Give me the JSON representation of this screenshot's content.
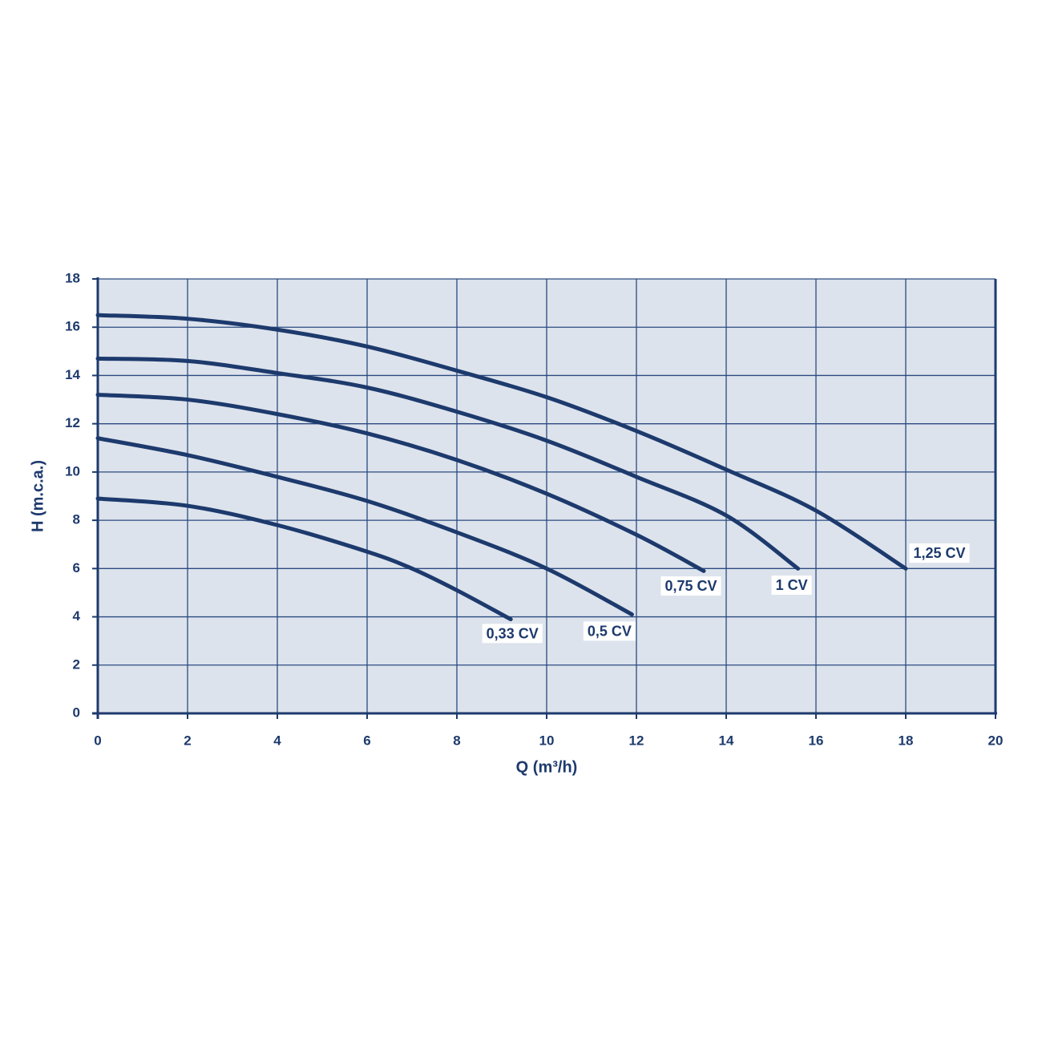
{
  "chart_data": {
    "type": "line",
    "x_label": "Q (m³/h)",
    "y_label": "H (m.c.a.)",
    "xlim": [
      0,
      20
    ],
    "ylim": [
      0,
      18
    ],
    "xticks": [
      0,
      2,
      4,
      6,
      8,
      10,
      12,
      14,
      16,
      18,
      20
    ],
    "yticks": [
      0,
      2,
      4,
      6,
      8,
      10,
      12,
      14,
      16,
      18
    ],
    "grid": true,
    "background": "#dde3ec",
    "series": [
      {
        "name": "1,25 CV",
        "color": "#1d3a6d",
        "x": [
          0,
          2,
          4,
          6,
          8,
          10,
          12,
          14,
          16,
          18
        ],
        "values": [
          16.5,
          16.35,
          15.9,
          15.2,
          14.2,
          13.1,
          11.7,
          10.1,
          8.4,
          6.0
        ]
      },
      {
        "name": "1 CV",
        "color": "#1d3a6d",
        "x": [
          0,
          2,
          4,
          6,
          8,
          10,
          12,
          14,
          15.6
        ],
        "values": [
          14.7,
          14.6,
          14.1,
          13.5,
          12.5,
          11.3,
          9.8,
          8.2,
          6.0
        ]
      },
      {
        "name": "0,75 CV",
        "color": "#1d3a6d",
        "x": [
          0,
          2,
          4,
          6,
          8,
          10,
          12,
          13.5
        ],
        "values": [
          13.2,
          13.0,
          12.4,
          11.6,
          10.5,
          9.1,
          7.4,
          5.9
        ]
      },
      {
        "name": "0,5 CV",
        "color": "#1d3a6d",
        "x": [
          0,
          2,
          4,
          6,
          8,
          10,
          11.9
        ],
        "values": [
          11.4,
          10.7,
          9.8,
          8.8,
          7.5,
          6.0,
          4.1
        ]
      },
      {
        "name": "0,33 CV",
        "color": "#1d3a6d",
        "x": [
          0,
          2,
          4,
          6,
          7,
          8,
          9.2
        ],
        "values": [
          8.9,
          8.6,
          7.8,
          6.7,
          6.0,
          5.1,
          3.9
        ]
      }
    ]
  }
}
